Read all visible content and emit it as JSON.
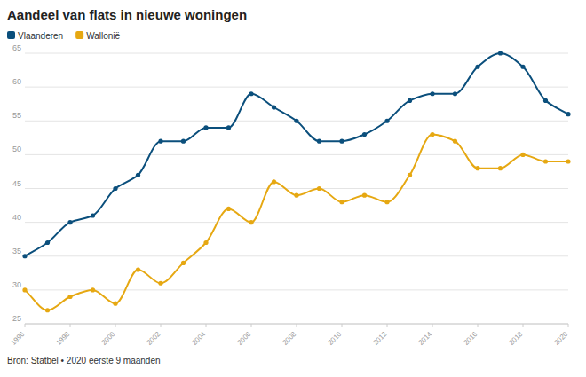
{
  "chart_data": {
    "type": "line",
    "title": "Aandeel van flats in nieuwe woningen",
    "source": "Bron: Statbel • 2020 eerste 9 maanden",
    "x": [
      1996,
      1997,
      1998,
      1999,
      2000,
      2001,
      2002,
      2003,
      2004,
      2005,
      2006,
      2007,
      2008,
      2009,
      2010,
      2011,
      2012,
      2013,
      2014,
      2015,
      2016,
      2017,
      2018,
      2019,
      2020
    ],
    "series": [
      {
        "name": "Vlaanderen",
        "color": "#0b4f7c",
        "marker": "circle",
        "values": [
          35,
          37,
          40,
          41,
          45,
          47,
          52,
          52,
          54,
          54,
          59,
          57,
          55,
          52,
          52,
          53,
          55,
          58,
          59,
          59,
          63,
          65,
          63,
          58,
          56
        ]
      },
      {
        "name": "Wallonië",
        "color": "#e6a812",
        "marker": "circle",
        "values": [
          30,
          27,
          29,
          30,
          28,
          33,
          31,
          34,
          37,
          42,
          40,
          46,
          44,
          45,
          43,
          44,
          43,
          47,
          53,
          52,
          48,
          48,
          50,
          49,
          49
        ]
      }
    ],
    "xlim": [
      1996,
      2020
    ],
    "xticks": [
      1996,
      1998,
      2000,
      2002,
      2004,
      2006,
      2008,
      2010,
      2012,
      2014,
      2016,
      2018,
      2020
    ],
    "ylim": [
      25,
      65
    ],
    "yticks": [
      25,
      30,
      35,
      40,
      45,
      50,
      55,
      60,
      65
    ],
    "grid": true,
    "legend": "top-left"
  }
}
